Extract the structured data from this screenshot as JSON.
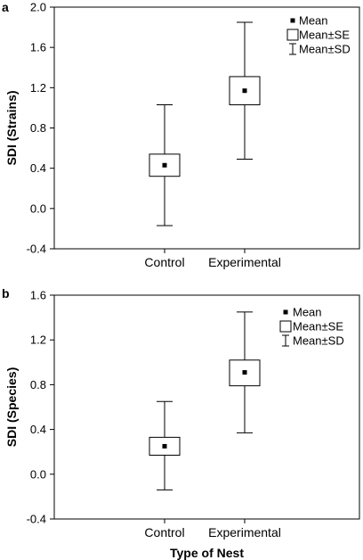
{
  "chart_data": [
    {
      "type": "box",
      "panel_label": "a",
      "categories": [
        "Control",
        "Experimental"
      ],
      "stats": [
        {
          "mean": 0.43,
          "se_low": 0.32,
          "se_high": 0.54,
          "sd_low": -0.17,
          "sd_high": 1.03
        },
        {
          "mean": 1.17,
          "se_low": 1.03,
          "se_high": 1.31,
          "sd_low": 0.49,
          "sd_high": 1.85
        }
      ],
      "ylabel": "SDI (Strains)",
      "xlabel": "",
      "ylim": [
        -0.4,
        2.0
      ],
      "yticks": [
        "-0.4",
        "0.0",
        "0.4",
        "0.8",
        "1.2",
        "1.6",
        "2.0"
      ],
      "legend": {
        "position": "top-right",
        "entries": [
          "Mean",
          "Mean±SE",
          "Mean±SD"
        ]
      },
      "grid": false
    },
    {
      "type": "box",
      "panel_label": "b",
      "categories": [
        "Control",
        "Experimental"
      ],
      "stats": [
        {
          "mean": 0.25,
          "se_low": 0.17,
          "se_high": 0.33,
          "sd_low": -0.14,
          "sd_high": 0.65
        },
        {
          "mean": 0.91,
          "se_low": 0.79,
          "se_high": 1.02,
          "sd_low": 0.37,
          "sd_high": 1.45
        }
      ],
      "ylabel": "SDI (Species)",
      "xlabel": "Type of Nest",
      "ylim": [
        -0.4,
        1.6
      ],
      "yticks": [
        "-0.4",
        "0.0",
        "0.4",
        "0.8",
        "1.2",
        "1.6"
      ],
      "legend": {
        "position": "top-right",
        "entries": [
          "Mean",
          "Mean±SE",
          "Mean±SD"
        ]
      },
      "grid": false
    }
  ]
}
